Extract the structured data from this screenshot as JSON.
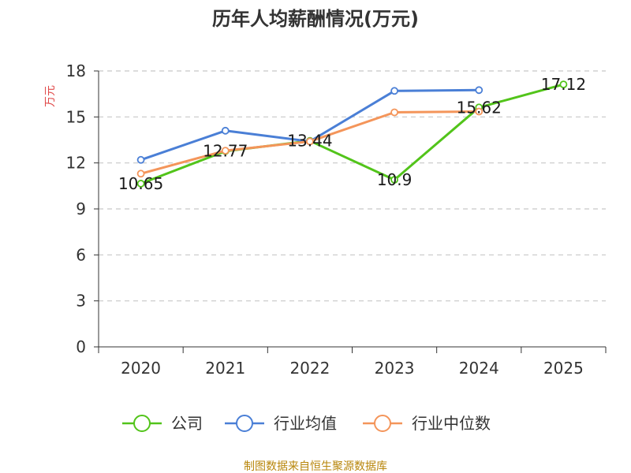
{
  "chart_data": {
    "type": "line",
    "title": "历年人均薪酬情况(万元)",
    "ylabel": "万元",
    "xlabel": "",
    "ylim": [
      0,
      18
    ],
    "yticks": [
      0,
      3,
      6,
      9,
      12,
      15,
      18
    ],
    "categories": [
      "2020",
      "2021",
      "2022",
      "2023",
      "2024",
      "2025"
    ],
    "grid": "horizontal-dashed",
    "legend_position": "bottom",
    "series": [
      {
        "name": "公司",
        "color": "#52c41a",
        "values": [
          10.65,
          12.77,
          13.44,
          10.9,
          15.62,
          17.12
        ],
        "labels": [
          "10.65",
          "12.77",
          "13.44",
          "10.9",
          "15.62",
          "17.12"
        ]
      },
      {
        "name": "行业均值",
        "color": "#4a7fd6",
        "values": [
          12.2,
          14.1,
          13.4,
          16.7,
          16.75,
          null
        ]
      },
      {
        "name": "行业中位数",
        "color": "#f4955a",
        "values": [
          11.3,
          12.8,
          13.4,
          15.3,
          15.35,
          null
        ]
      }
    ]
  },
  "source": "制图数据来自恒生聚源数据库"
}
